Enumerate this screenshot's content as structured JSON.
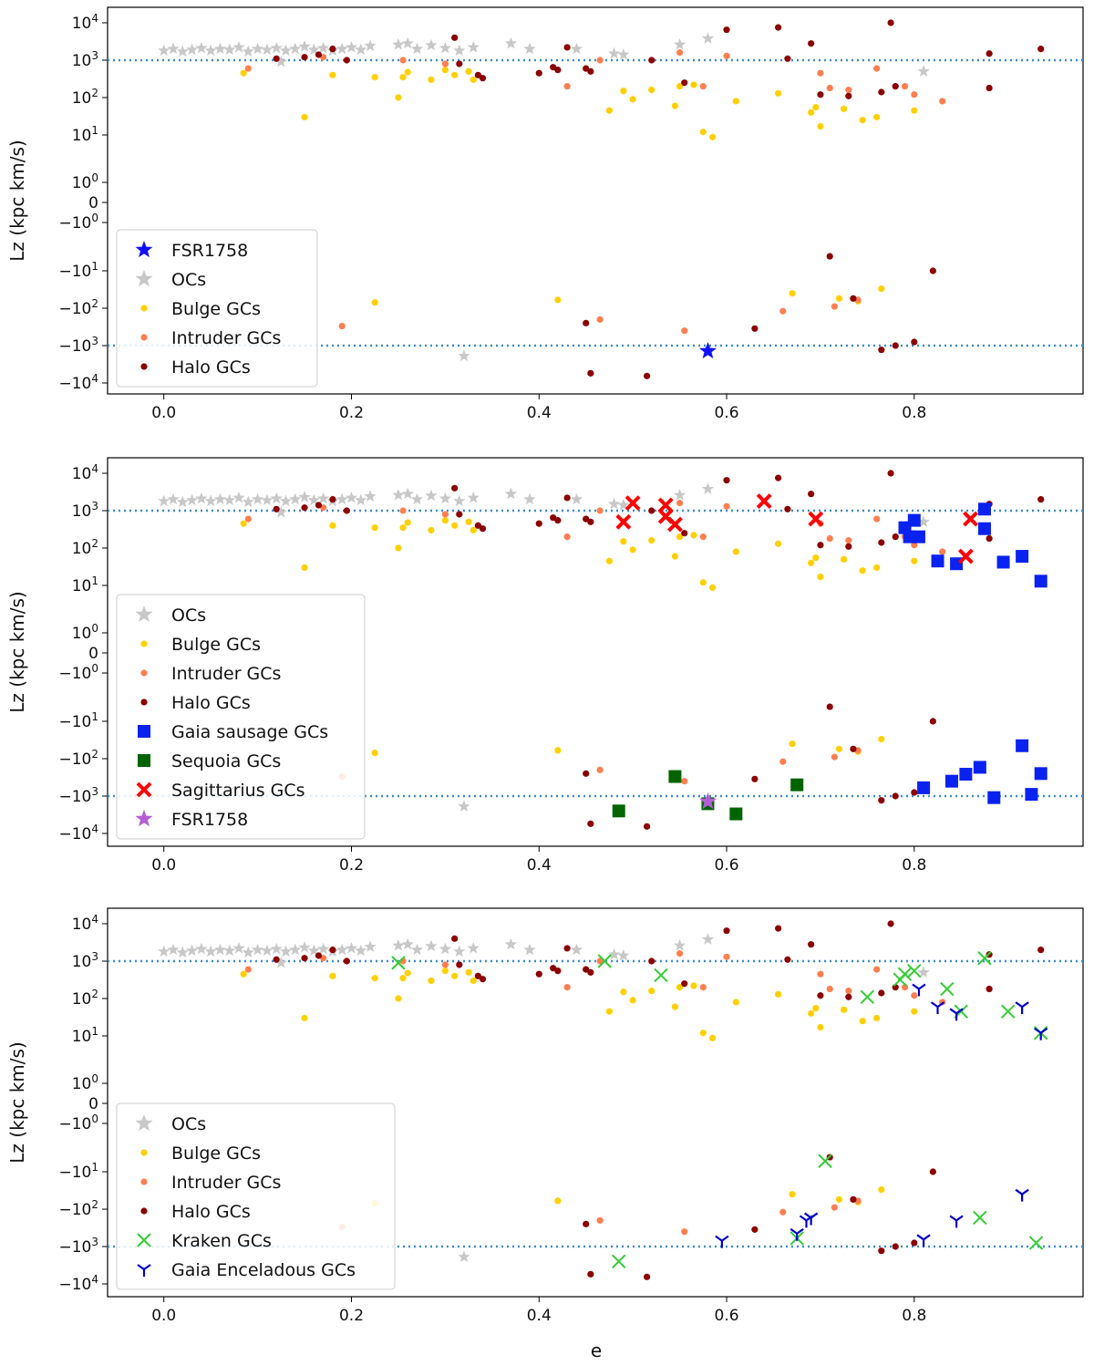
{
  "xlabel": "e",
  "ylabel": "Lz (kpc km/s)",
  "colors": {
    "ocs": "#c8c8c8",
    "bulge": "#ffd000",
    "intruder": "#ff7f50",
    "halo": "#8b0000",
    "fsr_blue": "#1010ff",
    "fsr_purple": "#b45fd6",
    "gaia_sausage": "#0a22f0",
    "sequoia": "#006400",
    "sagittarius": "#ff0000",
    "kraken": "#32cd32",
    "enceladus": "#0000cd",
    "refline": "#3a8ed0"
  },
  "chart_data": [
    {
      "type": "scatter",
      "panel": "top",
      "xlabel": "",
      "ylabel": "Lz (kpc km/s)",
      "xlim": [
        -0.06,
        0.98
      ],
      "yscale": "symlog",
      "xticks": [
        "0.0",
        "0.2",
        "0.4",
        "0.6",
        "0.8"
      ],
      "yticks": [
        "10^4",
        "10^3",
        "10^2",
        "10^1",
        "10^0",
        "0",
        "-10^0",
        "-10^1",
        "-10^2",
        "-10^3",
        "-10^4"
      ],
      "reference_lines": [
        1000,
        -1000
      ],
      "legend": [
        "FSR1758",
        "OCs",
        "Bulge GCs",
        "Intruder  GCs",
        "Halo GCs"
      ],
      "legend_position": "lower-left",
      "series": [
        {
          "name": "FSR1758",
          "marker": "star",
          "color_key": "fsr_blue",
          "points": [
            [
              0.58,
              -1400
            ]
          ]
        }
      ]
    },
    {
      "type": "scatter",
      "panel": "middle",
      "xlabel": "",
      "ylabel": "Lz (kpc km/s)",
      "xlim": [
        -0.06,
        0.98
      ],
      "yscale": "symlog",
      "xticks": [
        "0.0",
        "0.2",
        "0.4",
        "0.6",
        "0.8"
      ],
      "yticks": [
        "10^4",
        "10^3",
        "10^2",
        "10^1",
        "10^0",
        "0",
        "-10^0",
        "-10^1",
        "-10^2",
        "-10^3",
        "-10^4"
      ],
      "reference_lines": [
        1000,
        -1000
      ],
      "legend": [
        "OCs",
        "Bulge GCs",
        "Intruder  GCs",
        "Halo GCs",
        "Gaia sausage GCs",
        "Sequoia GCs",
        "Sagittarius GCs",
        "FSR1758"
      ],
      "legend_position": "lower-left",
      "series": [
        {
          "name": "Gaia sausage GCs",
          "marker": "square",
          "color_key": "gaia_sausage",
          "points": [
            [
              0.79,
              350
            ],
            [
              0.795,
              200
            ],
            [
              0.8,
              550
            ],
            [
              0.805,
              200
            ],
            [
              0.825,
              45
            ],
            [
              0.845,
              38
            ],
            [
              0.875,
              1100
            ],
            [
              0.875,
              330
            ],
            [
              0.895,
              42
            ],
            [
              0.915,
              60
            ],
            [
              0.935,
              13
            ],
            [
              0.81,
              -600
            ],
            [
              0.84,
              -400
            ],
            [
              0.855,
              -260
            ],
            [
              0.87,
              -170
            ],
            [
              0.915,
              -45
            ],
            [
              0.935,
              -250
            ],
            [
              0.885,
              -1100
            ],
            [
              0.925,
              -900
            ]
          ]
        },
        {
          "name": "Sequoia GCs",
          "marker": "square",
          "color_key": "sequoia",
          "points": [
            [
              0.485,
              -2500
            ],
            [
              0.545,
              -300
            ],
            [
              0.58,
              -1600
            ],
            [
              0.61,
              -3000
            ],
            [
              0.675,
              -500
            ]
          ]
        },
        {
          "name": "Sagittarius GCs",
          "marker": "x",
          "color_key": "sagittarius",
          "points": [
            [
              0.49,
              500
            ],
            [
              0.5,
              1600
            ],
            [
              0.535,
              1400
            ],
            [
              0.535,
              700
            ],
            [
              0.545,
              430
            ],
            [
              0.64,
              1800
            ],
            [
              0.695,
              600
            ],
            [
              0.86,
              600
            ],
            [
              0.855,
              60
            ]
          ]
        },
        {
          "name": "FSR1758",
          "marker": "star",
          "color_key": "fsr_purple",
          "points": [
            [
              0.58,
              -1400
            ]
          ]
        }
      ]
    },
    {
      "type": "scatter",
      "panel": "bottom",
      "xlabel": "e",
      "ylabel": "Lz (kpc km/s)",
      "xlim": [
        -0.06,
        0.98
      ],
      "yscale": "symlog",
      "xticks": [
        "0.0",
        "0.2",
        "0.4",
        "0.6",
        "0.8"
      ],
      "yticks": [
        "10^4",
        "10^3",
        "10^2",
        "10^1",
        "10^0",
        "0",
        "-10^0",
        "-10^1",
        "-10^2",
        "-10^3",
        "-10^4"
      ],
      "reference_lines": [
        1000,
        -1000
      ],
      "legend": [
        "OCs",
        "Bulge GCs",
        "Intruder  GCs",
        "Halo GCs",
        "Kraken GCs",
        "Gaia Enceladous GCs"
      ],
      "legend_position": "lower-left",
      "series": [
        {
          "name": "Kraken GCs",
          "marker": "x",
          "color_key": "kraken",
          "points": [
            [
              0.25,
              900
            ],
            [
              0.47,
              1000
            ],
            [
              0.53,
              420
            ],
            [
              0.75,
              110
            ],
            [
              0.785,
              320
            ],
            [
              0.79,
              450
            ],
            [
              0.8,
              550
            ],
            [
              0.835,
              180
            ],
            [
              0.85,
              45
            ],
            [
              0.875,
              1200
            ],
            [
              0.9,
              45
            ],
            [
              0.935,
              12
            ],
            [
              0.705,
              -6
            ],
            [
              0.485,
              -2500
            ],
            [
              0.675,
              -600
            ],
            [
              0.87,
              -170
            ],
            [
              0.93,
              -800
            ]
          ]
        },
        {
          "name": "Gaia Enceladous GCs",
          "marker": "tri",
          "color_key": "enceladus",
          "points": [
            [
              0.805,
              180
            ],
            [
              0.825,
              60
            ],
            [
              0.845,
              40
            ],
            [
              0.915,
              60
            ],
            [
              0.935,
              12
            ],
            [
              0.595,
              -700
            ],
            [
              0.675,
              -450
            ],
            [
              0.685,
              -200
            ],
            [
              0.69,
              -170
            ],
            [
              0.81,
              -650
            ],
            [
              0.845,
              -200
            ],
            [
              0.915,
              -40
            ]
          ]
        }
      ]
    }
  ],
  "common_series": {
    "OCs": [
      [
        0.0,
        1800
      ],
      [
        0.01,
        2000
      ],
      [
        0.02,
        1700
      ],
      [
        0.03,
        1900
      ],
      [
        0.04,
        2100
      ],
      [
        0.05,
        1800
      ],
      [
        0.06,
        2000
      ],
      [
        0.07,
        1900
      ],
      [
        0.08,
        2200
      ],
      [
        0.09,
        1700
      ],
      [
        0.1,
        2000
      ],
      [
        0.11,
        1900
      ],
      [
        0.12,
        2100
      ],
      [
        0.13,
        1800
      ],
      [
        0.14,
        2000
      ],
      [
        0.15,
        2300
      ],
      [
        0.16,
        1900
      ],
      [
        0.17,
        2100
      ],
      [
        0.18,
        1800
      ],
      [
        0.19,
        2000
      ],
      [
        0.2,
        2200
      ],
      [
        0.21,
        1900
      ],
      [
        0.22,
        2400
      ],
      [
        0.125,
        900
      ],
      [
        0.25,
        2600
      ],
      [
        0.26,
        2800
      ],
      [
        0.27,
        2000
      ],
      [
        0.285,
        2500
      ],
      [
        0.3,
        2100
      ],
      [
        0.315,
        1800
      ],
      [
        0.33,
        2200
      ],
      [
        0.37,
        2800
      ],
      [
        0.39,
        2000
      ],
      [
        0.44,
        2000
      ],
      [
        0.48,
        1500
      ],
      [
        0.49,
        1400
      ],
      [
        0.55,
        2600
      ],
      [
        0.58,
        3800
      ],
      [
        0.81,
        500
      ],
      [
        0.32,
        -1900
      ]
    ],
    "Bulge GCs": [
      [
        0.085,
        450
      ],
      [
        0.15,
        30
      ],
      [
        0.18,
        400
      ],
      [
        0.225,
        350
      ],
      [
        0.25,
        100
      ],
      [
        0.255,
        350
      ],
      [
        0.26,
        480
      ],
      [
        0.285,
        300
      ],
      [
        0.3,
        550
      ],
      [
        0.31,
        400
      ],
      [
        0.325,
        500
      ],
      [
        0.33,
        300
      ],
      [
        0.45,
        600
      ],
      [
        0.475,
        45
      ],
      [
        0.49,
        150
      ],
      [
        0.5,
        90
      ],
      [
        0.52,
        160
      ],
      [
        0.545,
        60
      ],
      [
        0.55,
        200
      ],
      [
        0.565,
        220
      ],
      [
        0.575,
        12
      ],
      [
        0.585,
        9
      ],
      [
        0.61,
        80
      ],
      [
        0.655,
        130
      ],
      [
        0.69,
        40
      ],
      [
        0.7,
        17
      ],
      [
        0.695,
        55
      ],
      [
        0.725,
        50
      ],
      [
        0.745,
        25
      ],
      [
        0.76,
        30
      ],
      [
        0.8,
        45
      ],
      [
        0.225,
        -70
      ],
      [
        0.42,
        -60
      ],
      [
        0.67,
        -40
      ],
      [
        0.72,
        -55
      ],
      [
        0.74,
        -65
      ],
      [
        0.765,
        -30
      ]
    ],
    "Intruder  GCs": [
      [
        0.09,
        600
      ],
      [
        0.17,
        1200
      ],
      [
        0.255,
        1000
      ],
      [
        0.3,
        800
      ],
      [
        0.43,
        200
      ],
      [
        0.465,
        1000
      ],
      [
        0.55,
        1600
      ],
      [
        0.575,
        200
      ],
      [
        0.6,
        1300
      ],
      [
        0.7,
        450
      ],
      [
        0.71,
        180
      ],
      [
        0.73,
        160
      ],
      [
        0.76,
        600
      ],
      [
        0.79,
        200
      ],
      [
        0.8,
        120
      ],
      [
        0.83,
        80
      ],
      [
        0.19,
        -300
      ],
      [
        0.465,
        -200
      ],
      [
        0.555,
        -400
      ],
      [
        0.66,
        -120
      ],
      [
        0.715,
        -90
      ],
      [
        0.74,
        -60
      ]
    ],
    "Halo GCs": [
      [
        0.12,
        1100
      ],
      [
        0.15,
        1200
      ],
      [
        0.165,
        1400
      ],
      [
        0.18,
        2000
      ],
      [
        0.195,
        1000
      ],
      [
        0.31,
        4000
      ],
      [
        0.315,
        800
      ],
      [
        0.335,
        400
      ],
      [
        0.34,
        330
      ],
      [
        0.4,
        450
      ],
      [
        0.415,
        650
      ],
      [
        0.42,
        550
      ],
      [
        0.43,
        2200
      ],
      [
        0.45,
        600
      ],
      [
        0.455,
        500
      ],
      [
        0.52,
        1000
      ],
      [
        0.555,
        250
      ],
      [
        0.6,
        6500
      ],
      [
        0.655,
        7500
      ],
      [
        0.665,
        1100
      ],
      [
        0.69,
        2800
      ],
      [
        0.7,
        120
      ],
      [
        0.73,
        110
      ],
      [
        0.765,
        140
      ],
      [
        0.775,
        10000
      ],
      [
        0.78,
        200
      ],
      [
        0.88,
        1500
      ],
      [
        0.88,
        180
      ],
      [
        0.935,
        2000
      ],
      [
        0.45,
        -250
      ],
      [
        0.455,
        -5500
      ],
      [
        0.515,
        -6500
      ],
      [
        0.63,
        -350
      ],
      [
        0.71,
        -5
      ],
      [
        0.735,
        -55
      ],
      [
        0.765,
        -1300
      ],
      [
        0.78,
        -1000
      ],
      [
        0.8,
        -800
      ],
      [
        0.82,
        -10
      ]
    ]
  },
  "legend_sets": [
    [
      "FSR1758",
      "OCs",
      "Bulge GCs",
      "Intruder  GCs",
      "Halo GCs"
    ],
    [
      "OCs",
      "Bulge GCs",
      "Intruder  GCs",
      "Halo GCs",
      "Gaia sausage GCs",
      "Sequoia GCs",
      "Sagittarius GCs",
      "FSR1758"
    ],
    [
      "OCs",
      "Bulge GCs",
      "Intruder  GCs",
      "Halo GCs",
      "Kraken GCs",
      "Gaia Enceladous GCs"
    ]
  ]
}
